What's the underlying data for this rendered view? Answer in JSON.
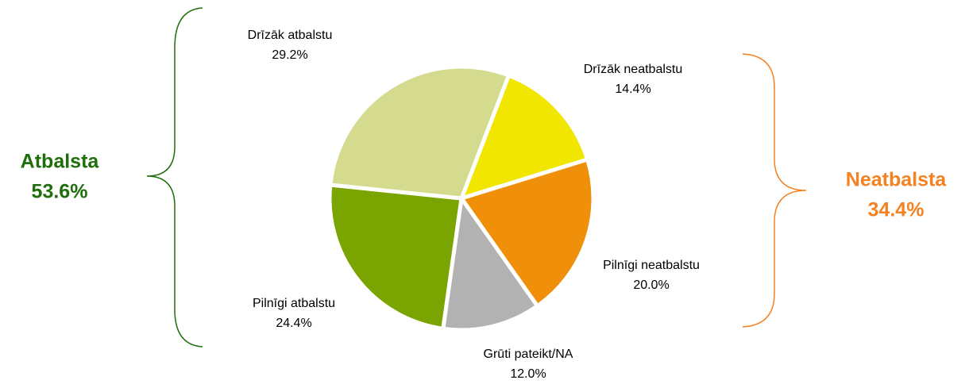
{
  "chart_data": {
    "type": "pie",
    "categories": [
      "Drīzāk neatbalstu",
      "Pilnīgi neatbalstu",
      "Grūti pateikt/NA",
      "Pilnīgi atbalstu",
      "Drīzāk atbalstu"
    ],
    "values": [
      14.4,
      20.0,
      12.0,
      24.4,
      29.2
    ],
    "value_labels": [
      "14.4%",
      "20.0%",
      "12.0%",
      "24.4%",
      "29.2%"
    ],
    "colors": [
      "#f0e600",
      "#f0900a",
      "#b2b2b2",
      "#7aa400",
      "#d4db8e"
    ],
    "annotations": [
      {
        "text": "Atbalsta",
        "value": "53.6%",
        "color": "#1e6e0a"
      },
      {
        "text": "Neatbalsta",
        "value": "34.4%",
        "color": "#f58220"
      }
    ]
  }
}
